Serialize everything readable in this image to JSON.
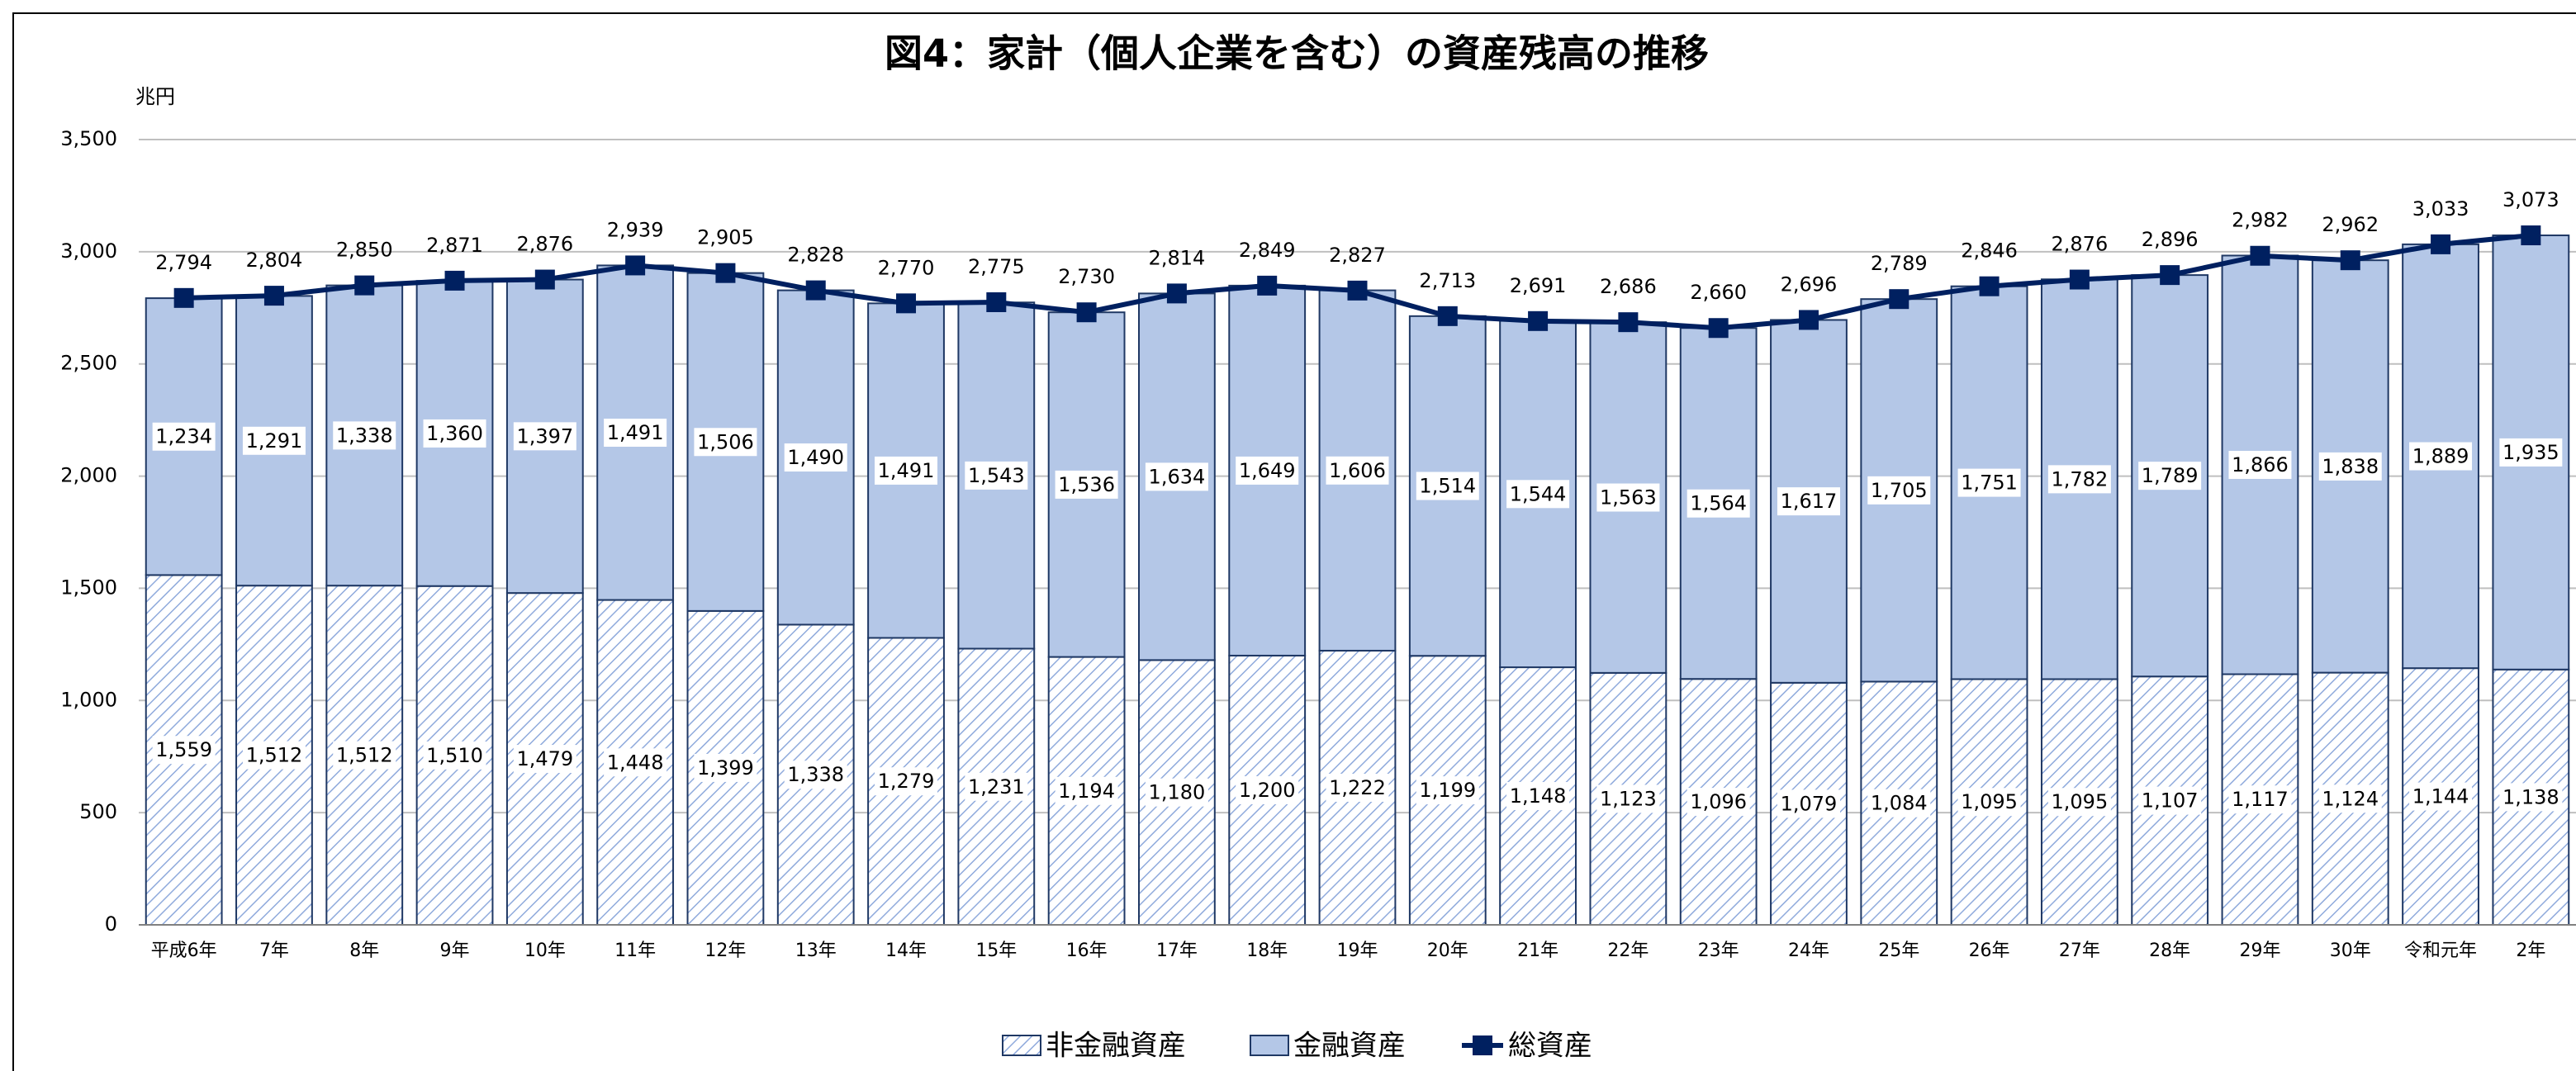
{
  "chart_data": {
    "type": "bar",
    "stacked": true,
    "title": "図4：家計（個人企業を含む）の資産残高の推移",
    "y_label": "兆円",
    "categories": [
      "平成6年",
      "7年",
      "8年",
      "9年",
      "10年",
      "11年",
      "12年",
      "13年",
      "14年",
      "15年",
      "16年",
      "17年",
      "18年",
      "19年",
      "20年",
      "21年",
      "22年",
      "23年",
      "24年",
      "25年",
      "26年",
      "27年",
      "28年",
      "29年",
      "30年",
      "令和元年",
      "2年"
    ],
    "series": [
      {
        "name": "非金融資産",
        "type": "bar",
        "color": "#8faadc",
        "pattern": "hatch",
        "values": [
          1559,
          1512,
          1512,
          1510,
          1479,
          1448,
          1399,
          1338,
          1279,
          1231,
          1194,
          1180,
          1200,
          1222,
          1199,
          1148,
          1123,
          1096,
          1079,
          1084,
          1095,
          1095,
          1107,
          1117,
          1124,
          1144,
          1138
        ],
        "value_labels": [
          "1,559",
          "1,512",
          "1,512",
          "1,510",
          "1,479",
          "1,448",
          "1,399",
          "1,338",
          "1,279",
          "1,231",
          "1,194",
          "1,180",
          "1,200",
          "1,222",
          "1,199",
          "1,148",
          "1,123",
          "1,096",
          "1,079",
          "1,084",
          "1,095",
          "1,095",
          "1,107",
          "1,117",
          "1,124",
          "1,144",
          "1,138"
        ]
      },
      {
        "name": "金融資産",
        "type": "bar",
        "color": "#b4c7e7",
        "values": [
          1234,
          1291,
          1338,
          1360,
          1397,
          1491,
          1506,
          1490,
          1491,
          1543,
          1536,
          1634,
          1649,
          1606,
          1514,
          1544,
          1563,
          1564,
          1617,
          1705,
          1751,
          1782,
          1789,
          1866,
          1838,
          1889,
          1935
        ],
        "value_labels": [
          "1,234",
          "1,291",
          "1,338",
          "1,360",
          "1,397",
          "1,491",
          "1,506",
          "1,490",
          "1,491",
          "1,543",
          "1,536",
          "1,634",
          "1,649",
          "1,606",
          "1,514",
          "1,544",
          "1,563",
          "1,564",
          "1,617",
          "1,705",
          "1,751",
          "1,782",
          "1,789",
          "1,866",
          "1,838",
          "1,889",
          "1,935"
        ]
      },
      {
        "name": "総資産",
        "type": "line",
        "color": "#002060",
        "values": [
          2794,
          2804,
          2850,
          2871,
          2876,
          2939,
          2905,
          2828,
          2770,
          2775,
          2730,
          2814,
          2849,
          2827,
          2713,
          2691,
          2686,
          2660,
          2696,
          2789,
          2846,
          2876,
          2896,
          2982,
          2962,
          3033,
          3073
        ],
        "value_labels": [
          "2,794",
          "2,804",
          "2,850",
          "2,871",
          "2,876",
          "2,939",
          "2,905",
          "2,828",
          "2,770",
          "2,775",
          "2,730",
          "2,814",
          "2,849",
          "2,827",
          "2,713",
          "2,691",
          "2,686",
          "2,660",
          "2,696",
          "2,789",
          "2,846",
          "2,876",
          "2,896",
          "2,982",
          "2,962",
          "3,033",
          "3,073"
        ]
      }
    ],
    "ylim": [
      0,
      3500
    ],
    "yticks": [
      0,
      500,
      {
        "value": 1000,
        "label": "1,000"
      },
      {
        "value": 1500,
        "label": "1,500"
      },
      {
        "value": 2000,
        "label": "2,000"
      },
      {
        "value": 2500,
        "label": "2,500"
      },
      {
        "value": 3000,
        "label": "3,000"
      },
      {
        "value": 3500,
        "label": "3,500"
      }
    ],
    "grid": true,
    "legend": "bottom"
  }
}
